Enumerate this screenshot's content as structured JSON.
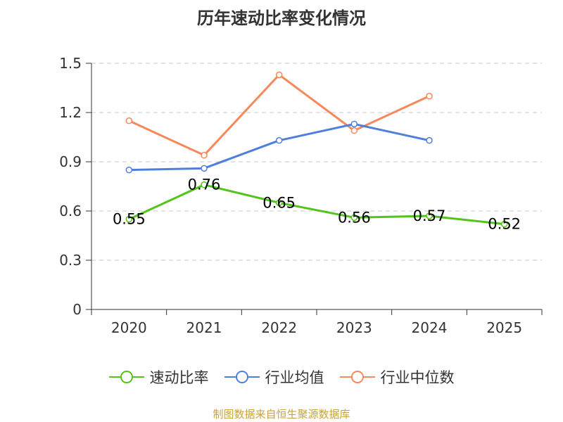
{
  "title": "历年速动比率变化情况",
  "source_note": "制图数据来自恒生聚源数据库",
  "colors": {
    "series1": "#52c41a",
    "series2": "#4f7fdc",
    "series3": "#f5895a",
    "grid": "#c8c8c8",
    "axis": "#333333"
  },
  "legend": [
    {
      "name": "速动比率",
      "color": "#52c41a"
    },
    {
      "name": "行业均值",
      "color": "#4f7fdc"
    },
    {
      "name": "行业中位数",
      "color": "#f5895a"
    }
  ],
  "chart_data": {
    "type": "line",
    "title": "历年速动比率变化情况",
    "categories": [
      "2020",
      "2021",
      "2022",
      "2023",
      "2024",
      "2025"
    ],
    "y_ticks": [
      "0",
      "0.3",
      "0.6",
      "0.9",
      "1.2",
      "1.5"
    ],
    "ylim": [
      0,
      1.5
    ],
    "grid": true,
    "legend_position": "bottom",
    "series": [
      {
        "name": "速动比率",
        "color": "#52c41a",
        "values": [
          0.55,
          0.76,
          0.65,
          0.56,
          0.57,
          0.52
        ],
        "labels": [
          "0.55",
          "0.76",
          "0.65",
          "0.56",
          "0.57",
          "0.52"
        ],
        "show_labels": true
      },
      {
        "name": "行业均值",
        "color": "#4f7fdc",
        "values": [
          0.85,
          0.86,
          1.03,
          1.13,
          1.03,
          null
        ],
        "show_labels": false
      },
      {
        "name": "行业中位数",
        "color": "#f5895a",
        "values": [
          1.15,
          0.94,
          1.43,
          1.09,
          1.3,
          null
        ],
        "show_labels": false
      }
    ]
  }
}
